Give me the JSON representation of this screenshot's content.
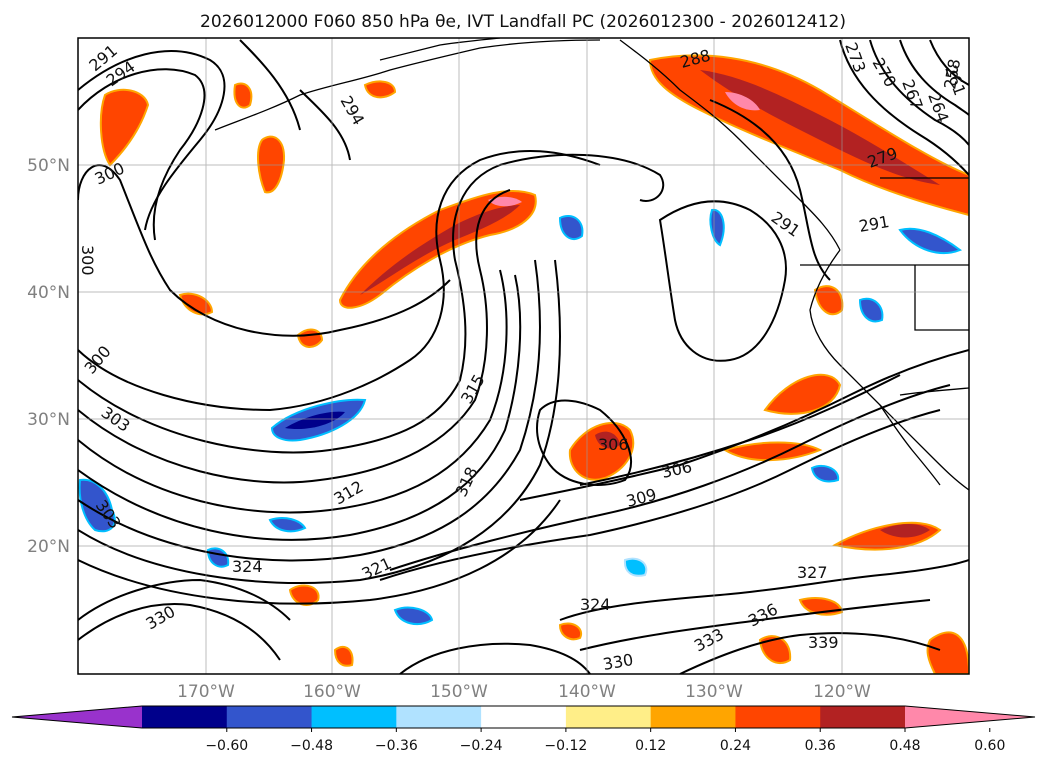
{
  "title": "2026012000 F060 850 hPa θe, IVT Landfall PC (2026012300 - 2026012412)",
  "lat_labels": [
    "50°N",
    "40°N",
    "30°N",
    "20°N"
  ],
  "lon_labels": [
    "170°W",
    "160°W",
    "150°W",
    "140°W",
    "130°W",
    "120°W"
  ],
  "colorbar": {
    "ticks": [
      "−0.60",
      "−0.48",
      "−0.36",
      "−0.24",
      "−0.12",
      "0.12",
      "0.24",
      "0.36",
      "0.48",
      "0.60"
    ],
    "colors": [
      "#9932cc",
      "#00008b",
      "#3355cc",
      "#00bfff",
      "#b0e2ff",
      "#ffffff",
      "#ffee88",
      "#ffa500",
      "#ff4500",
      "#b22222",
      "#ff88aa"
    ]
  },
  "contour_labels": [
    "291",
    "294",
    "300",
    "300",
    "300",
    "303",
    "303",
    "306",
    "306",
    "309",
    "312",
    "315",
    "318",
    "321",
    "324",
    "324",
    "327",
    "330",
    "330",
    "333",
    "336",
    "339",
    "288",
    "291",
    "294",
    "273",
    "270",
    "267",
    "264",
    "261",
    "258",
    "279",
    "291"
  ]
}
